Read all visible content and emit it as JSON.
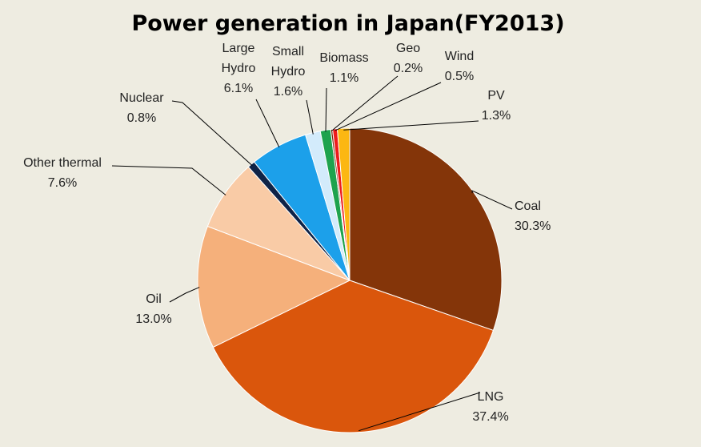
{
  "chart_data": {
    "type": "pie",
    "title": "Power generation in Japan(FY2013)",
    "start_angle_deg": 0,
    "direction": "clockwise",
    "slices": [
      {
        "label_lines": [
          "Coal"
        ],
        "percent_label": "30.3%",
        "value": 30.3,
        "color": "#843509"
      },
      {
        "label_lines": [
          "LNG"
        ],
        "percent_label": "37.4%",
        "value": 37.4,
        "color": "#da560c"
      },
      {
        "label_lines": [
          "Oil"
        ],
        "percent_label": "13.0%",
        "value": 13.0,
        "color": "#f5b07b"
      },
      {
        "label_lines": [
          "Other thermal"
        ],
        "percent_label": "7.6%",
        "value": 7.6,
        "color": "#f9cba6"
      },
      {
        "label_lines": [
          "Nuclear"
        ],
        "percent_label": "0.8%",
        "value": 0.8,
        "color": "#0f2347"
      },
      {
        "label_lines": [
          "Large",
          "Hydro"
        ],
        "percent_label": "6.1%",
        "value": 6.1,
        "color": "#1ca0ea"
      },
      {
        "label_lines": [
          "Small",
          "Hydro"
        ],
        "percent_label": "1.6%",
        "value": 1.6,
        "color": "#d3ebfb"
      },
      {
        "label_lines": [
          "Biomass"
        ],
        "percent_label": "1.1%",
        "value": 1.1,
        "color": "#1ea34e"
      },
      {
        "label_lines": [
          "Geo"
        ],
        "percent_label": "0.2%",
        "value": 0.2,
        "color": "#7a2a10"
      },
      {
        "label_lines": [
          "Wind"
        ],
        "percent_label": "0.5%",
        "value": 0.5,
        "color": "#ee1c1c"
      },
      {
        "label_lines": [
          "PV"
        ],
        "percent_label": "1.3%",
        "value": 1.3,
        "color": "#fcb712"
      }
    ]
  }
}
